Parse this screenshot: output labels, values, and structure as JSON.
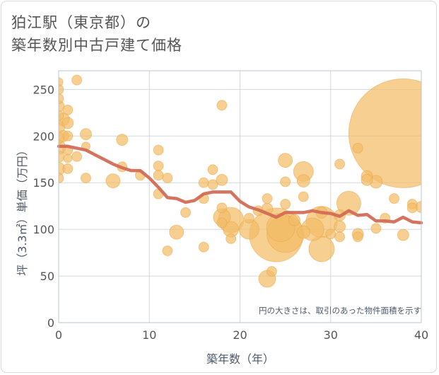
{
  "title": {
    "line1": "狛江駅（東京都）の",
    "line2": "築年数別中古戸建て価格"
  },
  "colors": {
    "bubble": "#f2bc66",
    "bubble_stroke": "#e6a647",
    "line": "#d36b56",
    "grid": "#cfd8e0",
    "plot_border": "#b8c5d0"
  },
  "chart_data": {
    "type": "scatter",
    "title": "狛江駅（東京都）の築年数別中古戸建て価格",
    "xlabel": "築年数（年）",
    "ylabel": "坪（3.3㎡）単価（万円）",
    "xlim": [
      0,
      40
    ],
    "ylim": [
      0,
      270
    ],
    "xticks": [
      0,
      10,
      20,
      30,
      40
    ],
    "yticks": [
      0,
      50,
      100,
      150,
      200,
      250
    ],
    "grid": true,
    "note": "円の大きさは、取引のあった物件面積を示す",
    "bubbles": [
      {
        "x": 0,
        "y": 258,
        "s": 6
      },
      {
        "x": 0,
        "y": 250,
        "s": 7
      },
      {
        "x": 0,
        "y": 240,
        "s": 7
      },
      {
        "x": 0,
        "y": 232,
        "s": 8
      },
      {
        "x": 0,
        "y": 222,
        "s": 7
      },
      {
        "x": 0,
        "y": 210,
        "s": 9
      },
      {
        "x": 0,
        "y": 198,
        "s": 8
      },
      {
        "x": 0,
        "y": 188,
        "s": 10
      },
      {
        "x": 0,
        "y": 178,
        "s": 8
      },
      {
        "x": 0,
        "y": 165,
        "s": 9
      },
      {
        "x": 0,
        "y": 155,
        "s": 7
      },
      {
        "x": 0.5,
        "y": 218,
        "s": 9
      },
      {
        "x": 0.5,
        "y": 200,
        "s": 8
      },
      {
        "x": 1,
        "y": 228,
        "s": 7
      },
      {
        "x": 1,
        "y": 214,
        "s": 8
      },
      {
        "x": 1,
        "y": 200,
        "s": 7
      },
      {
        "x": 1,
        "y": 185,
        "s": 7
      },
      {
        "x": 1,
        "y": 176,
        "s": 6
      },
      {
        "x": 1,
        "y": 165,
        "s": 7
      },
      {
        "x": 2,
        "y": 260,
        "s": 7
      },
      {
        "x": 2,
        "y": 178,
        "s": 7
      },
      {
        "x": 3,
        "y": 202,
        "s": 8
      },
      {
        "x": 3,
        "y": 189,
        "s": 6
      },
      {
        "x": 3,
        "y": 155,
        "s": 7
      },
      {
        "x": 6,
        "y": 152,
        "s": 10
      },
      {
        "x": 7,
        "y": 196,
        "s": 8
      },
      {
        "x": 7,
        "y": 167,
        "s": 7
      },
      {
        "x": 9,
        "y": 158,
        "s": 7
      },
      {
        "x": 11,
        "y": 185,
        "s": 7
      },
      {
        "x": 11,
        "y": 168,
        "s": 7
      },
      {
        "x": 11,
        "y": 158,
        "s": 7
      },
      {
        "x": 11,
        "y": 138,
        "s": 7
      },
      {
        "x": 12,
        "y": 155,
        "s": 7
      },
      {
        "x": 12,
        "y": 77,
        "s": 7
      },
      {
        "x": 13,
        "y": 97,
        "s": 10
      },
      {
        "x": 14,
        "y": 118,
        "s": 7
      },
      {
        "x": 16,
        "y": 150,
        "s": 7
      },
      {
        "x": 16,
        "y": 133,
        "s": 7
      },
      {
        "x": 16,
        "y": 81,
        "s": 7
      },
      {
        "x": 17,
        "y": 164,
        "s": 7
      },
      {
        "x": 17,
        "y": 148,
        "s": 7
      },
      {
        "x": 18,
        "y": 233,
        "s": 7
      },
      {
        "x": 18,
        "y": 153,
        "s": 8
      },
      {
        "x": 18,
        "y": 123,
        "s": 7
      },
      {
        "x": 18,
        "y": 113,
        "s": 12
      },
      {
        "x": 18,
        "y": 107,
        "s": 7
      },
      {
        "x": 19,
        "y": 110,
        "s": 18
      },
      {
        "x": 19,
        "y": 100,
        "s": 11
      },
      {
        "x": 19,
        "y": 90,
        "s": 7
      },
      {
        "x": 21,
        "y": 100,
        "s": 14
      },
      {
        "x": 21,
        "y": 112,
        "s": 7
      },
      {
        "x": 22,
        "y": 120,
        "s": 7
      },
      {
        "x": 23,
        "y": 133,
        "s": 7
      },
      {
        "x": 23,
        "y": 122,
        "s": 8
      },
      {
        "x": 23,
        "y": 47,
        "s": 12
      },
      {
        "x": 23.5,
        "y": 55,
        "s": 7
      },
      {
        "x": 24,
        "y": 94,
        "s": 38
      },
      {
        "x": 24.5,
        "y": 102,
        "s": 20
      },
      {
        "x": 25,
        "y": 174,
        "s": 10
      },
      {
        "x": 25,
        "y": 151,
        "s": 7
      },
      {
        "x": 25,
        "y": 127,
        "s": 7
      },
      {
        "x": 25,
        "y": 95,
        "s": 26
      },
      {
        "x": 26,
        "y": 110,
        "s": 8
      },
      {
        "x": 27,
        "y": 162,
        "s": 14
      },
      {
        "x": 27,
        "y": 152,
        "s": 9
      },
      {
        "x": 27,
        "y": 135,
        "s": 7
      },
      {
        "x": 27,
        "y": 97,
        "s": 9
      },
      {
        "x": 28,
        "y": 100,
        "s": 16
      },
      {
        "x": 29,
        "y": 118,
        "s": 8
      },
      {
        "x": 29,
        "y": 79,
        "s": 18
      },
      {
        "x": 29,
        "y": 108,
        "s": 22
      },
      {
        "x": 30,
        "y": 95,
        "s": 7
      },
      {
        "x": 31,
        "y": 170,
        "s": 7
      },
      {
        "x": 31,
        "y": 115,
        "s": 8
      },
      {
        "x": 31,
        "y": 103,
        "s": 8
      },
      {
        "x": 31,
        "y": 92,
        "s": 7
      },
      {
        "x": 32,
        "y": 128,
        "s": 17
      },
      {
        "x": 33,
        "y": 187,
        "s": 7
      },
      {
        "x": 33,
        "y": 95,
        "s": 8
      },
      {
        "x": 33,
        "y": 92,
        "s": 7
      },
      {
        "x": 34,
        "y": 157,
        "s": 8
      },
      {
        "x": 34,
        "y": 153,
        "s": 8
      },
      {
        "x": 35,
        "y": 151,
        "s": 9
      },
      {
        "x": 35,
        "y": 101,
        "s": 7
      },
      {
        "x": 36,
        "y": 112,
        "s": 7
      },
      {
        "x": 37,
        "y": 133,
        "s": 7
      },
      {
        "x": 38,
        "y": 203,
        "s": 77
      },
      {
        "x": 38,
        "y": 94,
        "s": 8
      },
      {
        "x": 39,
        "y": 127,
        "s": 7
      },
      {
        "x": 39,
        "y": 123,
        "s": 7
      },
      {
        "x": 40,
        "y": 124,
        "s": 8
      }
    ],
    "series": [
      {
        "type": "line",
        "x": [
          0,
          1,
          2,
          3,
          4,
          5,
          6,
          7,
          8,
          9,
          10,
          11,
          12,
          13,
          14,
          15,
          16,
          17,
          18,
          19,
          20,
          21,
          22,
          23,
          24,
          25,
          26,
          27,
          28,
          29,
          30,
          31,
          32,
          33,
          34,
          35,
          36,
          37,
          38,
          39,
          40
        ],
        "y": [
          189,
          189,
          187,
          185,
          180,
          175,
          170,
          166,
          163,
          163,
          155,
          145,
          134,
          133,
          129,
          131,
          138,
          140,
          140,
          140,
          130,
          124,
          121,
          117,
          113,
          118,
          118,
          118,
          120,
          118,
          117,
          114,
          120,
          115,
          116,
          109,
          109,
          108,
          113,
          108,
          107
        ]
      }
    ]
  }
}
